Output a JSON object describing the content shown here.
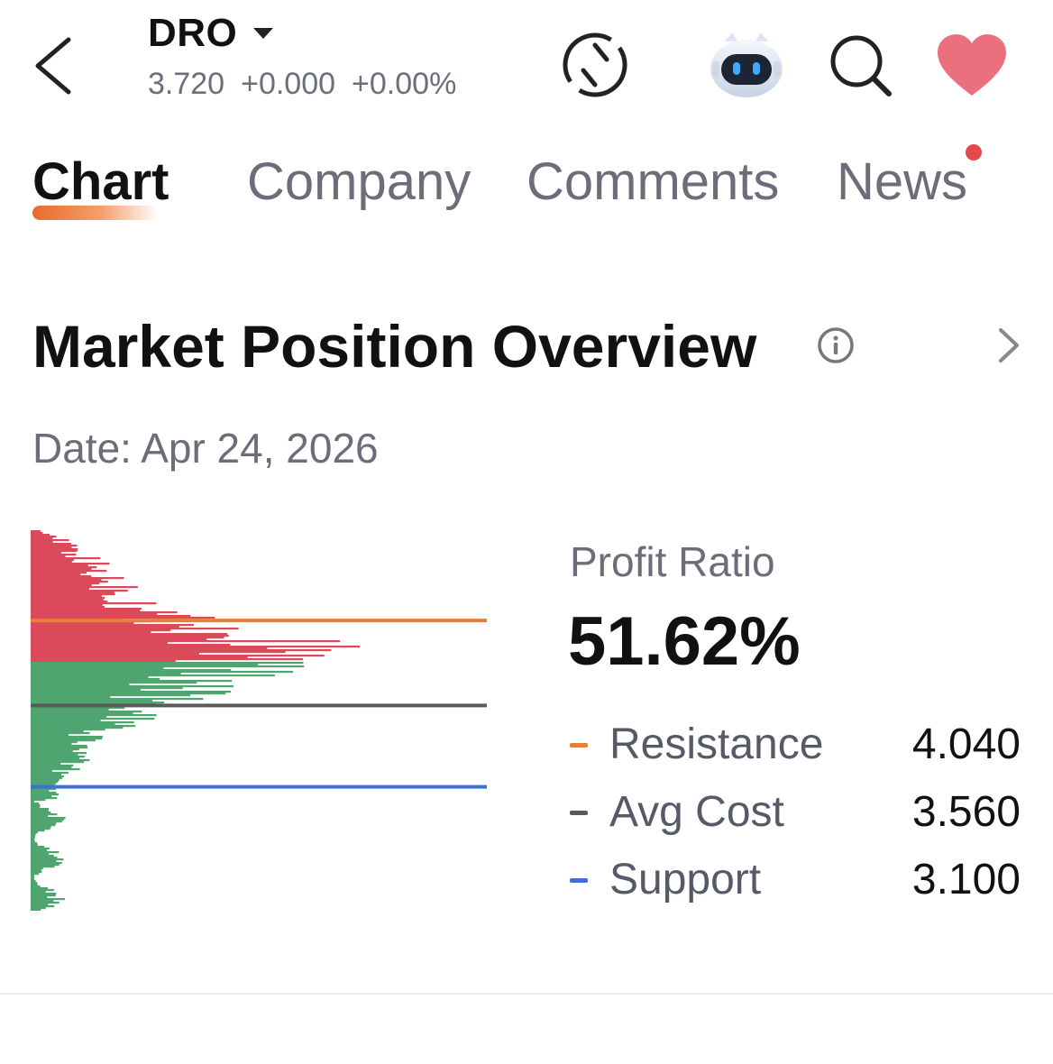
{
  "header": {
    "ticker": "DRO",
    "price": "3.720",
    "change": "+0.000",
    "change_pct": "+0.00%"
  },
  "tabs": [
    {
      "label": "Chart",
      "active": true
    },
    {
      "label": "Company",
      "active": false
    },
    {
      "label": "Comments",
      "active": false
    },
    {
      "label": "News",
      "active": false,
      "has_dot": true
    }
  ],
  "section": {
    "title": "Market Position Overview",
    "date": "Date: Apr 24, 2026"
  },
  "stats": {
    "profit_label": "Profit Ratio",
    "profit_value": "51.62%",
    "rows": [
      {
        "label": "Resistance",
        "value": "4.040",
        "color": "#e97d3a"
      },
      {
        "label": "Avg Cost",
        "value": "3.560",
        "color": "#5a5a5a"
      },
      {
        "label": "Support",
        "value": "3.100",
        "color": "#3f6fd8"
      }
    ]
  },
  "icons": {
    "back": "chevron-left-icon",
    "refresh": "refresh-icon",
    "assistant": "robot-assistant-icon",
    "search": "search-icon",
    "favorite": "heart-icon",
    "info": "info-icon",
    "more": "chevron-right-icon"
  },
  "colors": {
    "profit": "#dc4a5a",
    "loss": "#4fa56f",
    "favorite": "#ec6f7e",
    "news_dot": "#e5484d",
    "tab_accent": "#e86b2a"
  },
  "chart_data": {
    "type": "bar",
    "orientation": "horizontal",
    "description": "Chip distribution histogram; red = holders in profit (above current price), green = holders at loss/below.",
    "reference_lines": [
      {
        "name": "Resistance",
        "value": 4.04,
        "color": "#e97d3a"
      },
      {
        "name": "Avg Cost",
        "value": 3.56,
        "color": "#5a5a5a"
      },
      {
        "name": "Support",
        "value": 3.1,
        "color": "#3f6fd8"
      }
    ]
  }
}
